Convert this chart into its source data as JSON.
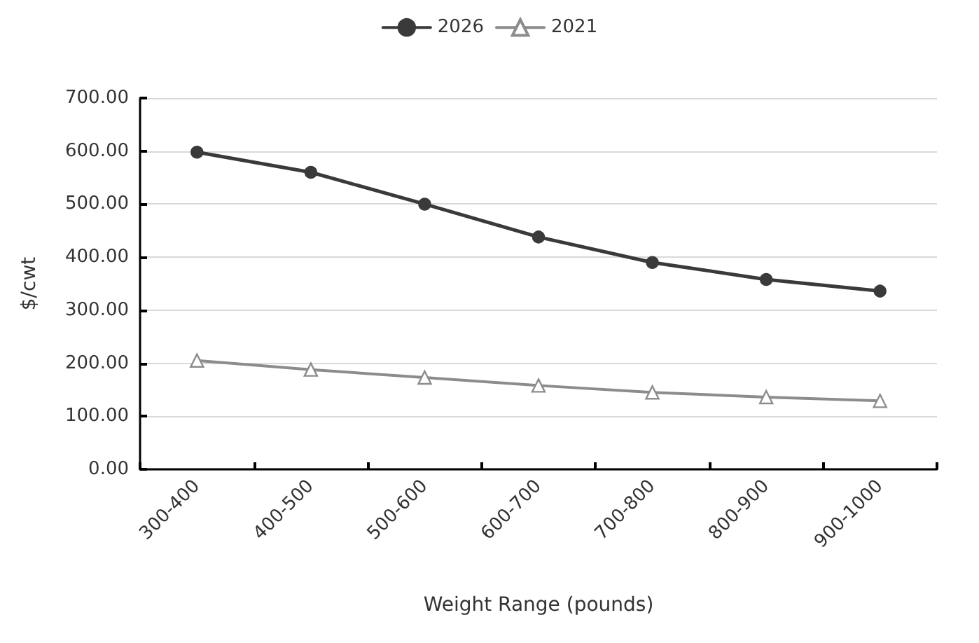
{
  "chart_data": {
    "type": "line",
    "xlabel": "Weight Range (pounds)",
    "ylabel": "$/cwt",
    "categories": [
      "300-400",
      "400-500",
      "500-600",
      "600-700",
      "700-800",
      "800-900",
      "900-1000"
    ],
    "series": [
      {
        "name": "2026",
        "color": "#3a3a3a",
        "marker": "circle",
        "values": [
          598,
          560,
          500,
          438,
          390,
          358,
          336
        ]
      },
      {
        "name": "2021",
        "color": "#8c8c8c",
        "marker": "triangle",
        "values": [
          205,
          188,
          173,
          158,
          145,
          136,
          129
        ]
      }
    ],
    "ylim": [
      0,
      700
    ],
    "yticks": [
      {
        "value": 0,
        "label": "0.00"
      },
      {
        "value": 100,
        "label": "100.00"
      },
      {
        "value": 200,
        "label": "200.00"
      },
      {
        "value": 300,
        "label": "300.00"
      },
      {
        "value": 400,
        "label": "400.00"
      },
      {
        "value": 500,
        "label": "500.00"
      },
      {
        "value": 600,
        "label": "600.00"
      },
      {
        "value": 700,
        "label": "700.00"
      }
    ],
    "grid": "y",
    "legend": "top"
  }
}
